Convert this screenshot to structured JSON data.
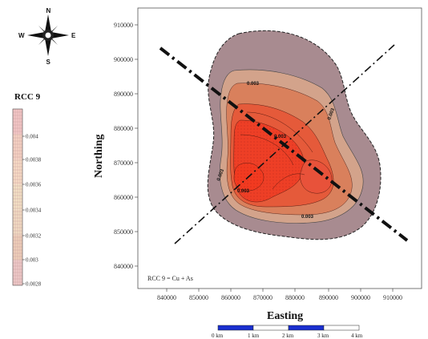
{
  "compass": {
    "n": "N",
    "s": "S",
    "e": "E",
    "w": "W",
    "icon": "compass-rose-icon"
  },
  "legend": {
    "title": "RCC 9",
    "ticks": [
      "0.004",
      "0.0038",
      "0.0036",
      "0.0034",
      "0.0032",
      "0.003",
      "0.0028"
    ],
    "colors": [
      "#f3c6c6",
      "#f6d2c3",
      "#f8ddc6",
      "#f4e3c6",
      "#f2dcc3",
      "#efcfb9",
      "#eec9c8"
    ]
  },
  "axes": {
    "xlabel": "Easting",
    "ylabel": "Northing",
    "xticks": [
      "840000",
      "850000",
      "860000",
      "870000",
      "880000",
      "890000",
      "900000",
      "910000"
    ],
    "yticks": [
      "910000",
      "900000",
      "890000",
      "880000",
      "870000",
      "860000",
      "850000",
      "840000"
    ]
  },
  "contour_labels": [
    "0.003",
    "0.003",
    "0.003",
    "0.003",
    "0.003",
    "0.003"
  ],
  "formula_note": "RCC 9 = Cu + As",
  "scale_bar": {
    "labels": [
      "0 km",
      "1 km",
      "2 km",
      "3 km",
      "4 km"
    ]
  },
  "colors": {
    "outer_zone": "#a8898c",
    "low": "#d8826a",
    "mid": "#e85a3c",
    "high": "#ef3b24",
    "scale_dark": "#1a2fd0"
  }
}
